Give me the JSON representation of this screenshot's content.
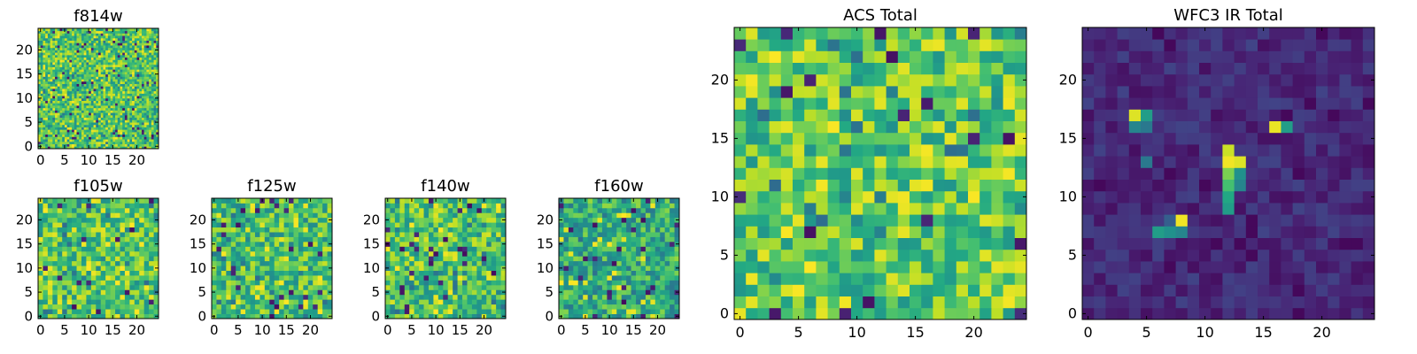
{
  "colormap": "viridis",
  "colors": {
    "low": "#440154",
    "mid": "#21918c",
    "high": "#fde725"
  },
  "chart_data": [
    {
      "type": "heatmap",
      "title": "f814w",
      "xlim": [
        0,
        24
      ],
      "ylim": [
        0,
        24
      ],
      "x_ticks": [
        "0",
        "5",
        "10",
        "15",
        "20"
      ],
      "y_ticks": [
        "0",
        "5",
        "10",
        "15",
        "20"
      ],
      "pixel_grid": 50,
      "value_range": [
        0,
        1
      ],
      "base_level": 0.72,
      "hotspots": [],
      "seed": 3
    },
    {
      "type": "heatmap",
      "title": "f105w",
      "xlim": [
        0,
        24
      ],
      "ylim": [
        0,
        24
      ],
      "x_ticks": [
        "0",
        "5",
        "10",
        "15",
        "20"
      ],
      "y_ticks": [
        "0",
        "5",
        "10",
        "15",
        "20"
      ],
      "pixel_grid": 25,
      "value_range": [
        0,
        1
      ],
      "base_level": 0.72,
      "hotspots": [],
      "seed": 11
    },
    {
      "type": "heatmap",
      "title": "f125w",
      "xlim": [
        0,
        24
      ],
      "ylim": [
        0,
        24
      ],
      "x_ticks": [
        "0",
        "5",
        "10",
        "15",
        "20"
      ],
      "y_ticks": [
        "0",
        "5",
        "10",
        "15",
        "20"
      ],
      "pixel_grid": 25,
      "value_range": [
        0,
        1
      ],
      "base_level": 0.7,
      "hotspots": [],
      "seed": 17
    },
    {
      "type": "heatmap",
      "title": "f140w",
      "xlim": [
        0,
        24
      ],
      "ylim": [
        0,
        24
      ],
      "x_ticks": [
        "0",
        "5",
        "10",
        "15",
        "20"
      ],
      "y_ticks": [
        "0",
        "5",
        "10",
        "15",
        "20"
      ],
      "pixel_grid": 25,
      "value_range": [
        0,
        1
      ],
      "base_level": 0.72,
      "hotspots": [],
      "seed": 23
    },
    {
      "type": "heatmap",
      "title": "f160w",
      "xlim": [
        0,
        24
      ],
      "ylim": [
        0,
        24
      ],
      "x_ticks": [
        "0",
        "5",
        "10",
        "15",
        "20"
      ],
      "y_ticks": [
        "0",
        "5",
        "10",
        "15",
        "20"
      ],
      "pixel_grid": 25,
      "value_range": [
        0,
        1
      ],
      "base_level": 0.62,
      "hotspots": [],
      "seed": 29
    },
    {
      "type": "heatmap",
      "title": "ACS Total",
      "xlim": [
        0,
        24
      ],
      "ylim": [
        0,
        24
      ],
      "x_ticks": [
        "0",
        "5",
        "10",
        "15",
        "20"
      ],
      "y_ticks": [
        "0",
        "5",
        "10",
        "15",
        "20"
      ],
      "pixel_grid": 25,
      "value_range": [
        0,
        1
      ],
      "base_level": 0.74,
      "hotspots": [],
      "seed": 41
    },
    {
      "type": "heatmap",
      "title": "WFC3 IR Total",
      "xlim": [
        0,
        24
      ],
      "ylim": [
        0,
        24
      ],
      "x_ticks": [
        "0",
        "5",
        "10",
        "15",
        "20"
      ],
      "y_ticks": [
        "0",
        "5",
        "10",
        "15",
        "20"
      ],
      "pixel_grid": 25,
      "value_range": [
        0,
        1
      ],
      "base_level": 0.12,
      "hotspots": [
        {
          "x": 4,
          "y": 17,
          "value": 0.95
        },
        {
          "x": 5,
          "y": 17,
          "value": 0.55
        },
        {
          "x": 4,
          "y": 16,
          "value": 0.45
        },
        {
          "x": 5,
          "y": 16,
          "value": 0.4
        },
        {
          "x": 16,
          "y": 16,
          "value": 0.97
        },
        {
          "x": 17,
          "y": 16,
          "value": 0.55
        },
        {
          "x": 12,
          "y": 14,
          "value": 0.92
        },
        {
          "x": 12,
          "y": 13,
          "value": 0.98
        },
        {
          "x": 13,
          "y": 13,
          "value": 0.95
        },
        {
          "x": 12,
          "y": 12,
          "value": 0.8
        },
        {
          "x": 13,
          "y": 12,
          "value": 0.5
        },
        {
          "x": 12,
          "y": 11,
          "value": 0.7
        },
        {
          "x": 13,
          "y": 11,
          "value": 0.45
        },
        {
          "x": 12,
          "y": 10,
          "value": 0.6
        },
        {
          "x": 12,
          "y": 9,
          "value": 0.55
        },
        {
          "x": 8,
          "y": 8,
          "value": 0.98
        },
        {
          "x": 7,
          "y": 8,
          "value": 0.3
        },
        {
          "x": 6,
          "y": 7,
          "value": 0.55
        },
        {
          "x": 7,
          "y": 7,
          "value": 0.5
        },
        {
          "x": 8,
          "y": 7,
          "value": 0.45
        },
        {
          "x": 5,
          "y": 13,
          "value": 0.4
        }
      ],
      "seed": 53
    }
  ]
}
